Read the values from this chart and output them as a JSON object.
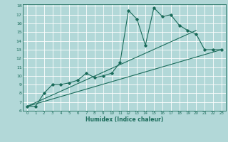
{
  "xlabel": "Humidex (Indice chaleur)",
  "xlim": [
    -0.5,
    23.5
  ],
  "ylim": [
    6,
    18.2
  ],
  "xticks": [
    0,
    1,
    2,
    3,
    4,
    5,
    6,
    7,
    8,
    9,
    10,
    11,
    12,
    13,
    14,
    15,
    16,
    17,
    18,
    19,
    20,
    21,
    22,
    23
  ],
  "yticks": [
    6,
    7,
    8,
    9,
    10,
    11,
    12,
    13,
    14,
    15,
    16,
    17,
    18
  ],
  "bg_color": "#b2d8d8",
  "grid_color": "#ffffff",
  "line_color": "#1a6b5a",
  "line1_x": [
    0,
    1,
    2,
    3,
    4,
    5,
    6,
    7,
    8,
    9,
    10,
    11,
    12,
    13,
    14,
    15,
    16,
    17,
    18,
    19,
    20,
    21,
    22,
    23
  ],
  "line1_y": [
    6.5,
    6.5,
    8.0,
    9.0,
    9.0,
    9.2,
    9.5,
    10.3,
    9.8,
    10.0,
    10.3,
    11.5,
    17.5,
    16.5,
    13.5,
    17.8,
    16.8,
    17.0,
    15.8,
    15.2,
    14.8,
    13.0,
    13.0,
    13.0
  ],
  "line2_x": [
    0,
    23
  ],
  "line2_y": [
    6.5,
    13.0
  ],
  "line3_x": [
    0,
    20
  ],
  "line3_y": [
    6.5,
    15.2
  ]
}
